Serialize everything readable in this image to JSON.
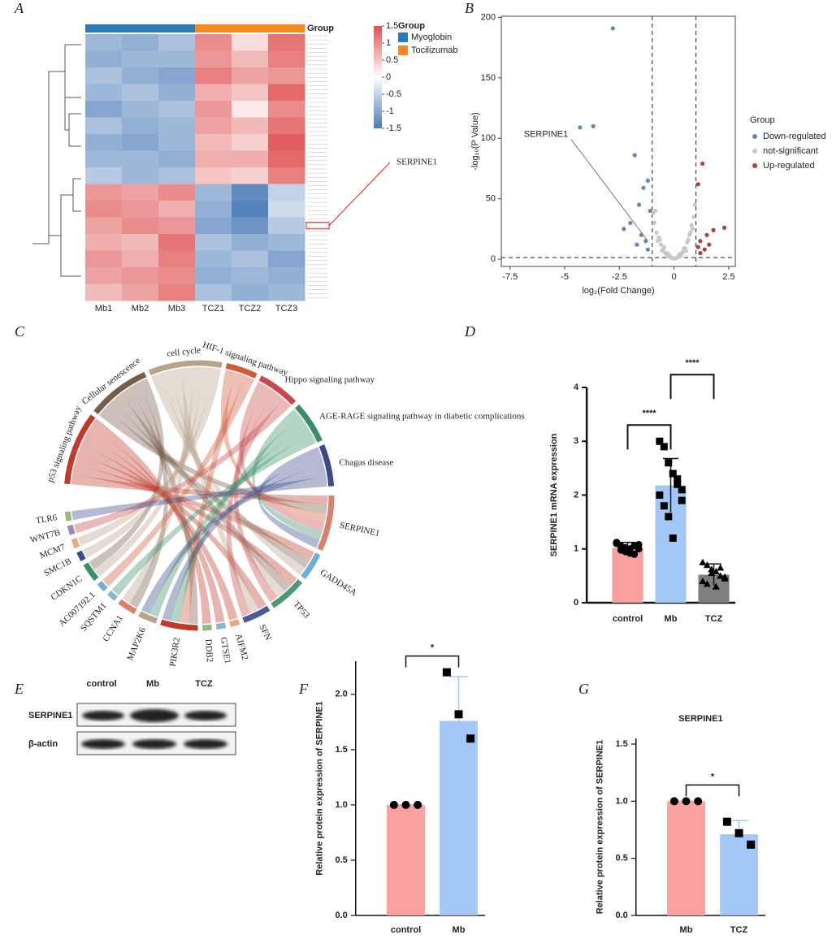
{
  "panels": [
    "A",
    "B",
    "C",
    "D",
    "E",
    "F",
    "G"
  ],
  "chart_data": [
    {
      "type": "heatmap",
      "categories": [
        "Mb1",
        "Mb2",
        "Mb3",
        "TCZ1",
        "TCZ2",
        "TCZ3"
      ],
      "legend_title": "Group",
      "groups": [
        {
          "name": "Myoglobin",
          "color": "#2b7bba",
          "columns": [
            "Mb1",
            "Mb2",
            "Mb3"
          ]
        },
        {
          "name": "Tocilizumab",
          "color": "#f5891f",
          "columns": [
            "TCZ1",
            "TCZ2",
            "TCZ3"
          ]
        }
      ],
      "clim": [
        -1.5,
        1.5
      ],
      "colorticks": [
        1.5,
        1,
        0.5,
        0,
        -0.5,
        -1,
        -1.5
      ],
      "annotation": {
        "text": "SERPINE1",
        "row": 11
      },
      "values": [
        [
          -0.8,
          -0.9,
          -0.7,
          1.0,
          0.3,
          1.2
        ],
        [
          -0.9,
          -0.8,
          -0.8,
          0.9,
          0.6,
          1.1
        ],
        [
          -0.7,
          -0.9,
          -1.0,
          1.1,
          0.8,
          0.9
        ],
        [
          -0.8,
          -0.7,
          -0.9,
          0.7,
          0.5,
          1.3
        ],
        [
          -1.0,
          -0.8,
          -0.7,
          0.9,
          0.2,
          1.0
        ],
        [
          -0.7,
          -0.9,
          -0.8,
          0.8,
          0.6,
          1.2
        ],
        [
          -0.9,
          -1.0,
          -0.8,
          0.6,
          0.4,
          1.4
        ],
        [
          -0.8,
          -0.8,
          -0.9,
          0.7,
          0.7,
          1.3
        ],
        [
          -0.6,
          -0.8,
          -0.7,
          0.5,
          0.4,
          1.1
        ],
        [
          0.9,
          0.8,
          1.0,
          -0.8,
          -1.3,
          -0.5
        ],
        [
          1.0,
          0.9,
          0.7,
          -0.9,
          -1.4,
          -0.4
        ],
        [
          0.8,
          1.0,
          0.9,
          -1.0,
          -1.2,
          -0.6
        ],
        [
          0.7,
          0.6,
          1.2,
          -0.7,
          -0.9,
          -0.8
        ],
        [
          0.9,
          0.7,
          1.1,
          -0.8,
          -0.7,
          -1.0
        ],
        [
          0.8,
          0.9,
          1.0,
          -0.9,
          -0.8,
          -0.9
        ],
        [
          0.6,
          0.8,
          1.1,
          -0.7,
          -0.9,
          -0.8
        ]
      ]
    },
    {
      "type": "scatter",
      "xlabel": "log₂(Fold Change)",
      "ylabel": "-log₁₀(P Value)",
      "xlim": [
        -7.9,
        2.8
      ],
      "ylim": [
        -6,
        201
      ],
      "xticks": [
        -7.5,
        -5,
        -2.5,
        0,
        2.5
      ],
      "yticks": [
        0,
        50,
        100,
        150,
        200
      ],
      "vlines": [
        -1,
        1
      ],
      "hline": 1.3,
      "legend_title": "Group",
      "legend": "right",
      "annotation": {
        "text": "SERPINE1",
        "x": -1.2,
        "y": 15
      },
      "series": [
        {
          "name": "Down-regulated",
          "color": "#6a87a8",
          "x": [
            -2.8,
            -4.3,
            -3.7,
            -1.8,
            -1.4,
            -1.2,
            -1.6,
            -2.0,
            -2.3,
            -1.5,
            -1.3,
            -1.2,
            -1.1,
            -1.7
          ],
          "values": [
            191,
            109,
            110,
            86,
            59,
            65,
            45,
            30,
            25,
            20,
            15,
            8,
            40,
            12
          ]
        },
        {
          "name": "not-significant",
          "color": "#c8c8c8",
          "x": [
            -0.9,
            -0.8,
            -0.7,
            -0.6,
            -0.5,
            -0.4,
            -0.3,
            -0.2,
            -0.1,
            0,
            0.1,
            0.2,
            0.3,
            0.4,
            0.5,
            0.6,
            0.7,
            0.8,
            0.9,
            -0.85,
            -0.65,
            -0.45,
            -0.25,
            0.25,
            0.45,
            0.65,
            0.85,
            -0.55,
            0.55,
            0.15,
            -0.15,
            0.35,
            -0.35,
            0.75,
            -0.75,
            0.95,
            -0.95,
            0.05
          ],
          "values": [
            30,
            22,
            18,
            12,
            8,
            5,
            3,
            2,
            1,
            0.5,
            1,
            2,
            3,
            6,
            9,
            14,
            20,
            28,
            35,
            40,
            16,
            10,
            4,
            4,
            9,
            16,
            25,
            7,
            7,
            1.5,
            1.5,
            5,
            5,
            22,
            15,
            45,
            38,
            0.8
          ]
        },
        {
          "name": "Up-regulated",
          "color": "#b83c3c",
          "x": [
            1.3,
            1.1,
            2.3,
            1.5,
            1.2,
            1.1,
            1.8,
            1.4,
            1.2,
            1.6
          ],
          "values": [
            79,
            62,
            26,
            20,
            15,
            10,
            24,
            8,
            5,
            12
          ]
        }
      ]
    },
    {
      "type": "bar",
      "ylabel": "SERPINE1 mRNA expression",
      "categories": [
        "control",
        "Mb",
        "TCZ"
      ],
      "values": [
        1.02,
        2.18,
        0.52
      ],
      "errors": [
        0.1,
        0.5,
        0.2
      ],
      "colors": [
        "#f9a0a0",
        "#a3c8f7",
        "#7f7f7f"
      ],
      "markers": [
        "circle",
        "square",
        "triangle"
      ],
      "points": [
        [
          1.1,
          1.05,
          0.95,
          1.0,
          0.9,
          1.08,
          1.12,
          0.98,
          1.02,
          0.92,
          1.06,
          1.0
        ],
        [
          3.0,
          2.9,
          2.6,
          2.4,
          2.2,
          2.1,
          2.0,
          1.8,
          1.6,
          1.2,
          2.3,
          1.9
        ],
        [
          0.75,
          0.7,
          0.62,
          0.58,
          0.5,
          0.45,
          0.4,
          0.35,
          0.55,
          0.3,
          0.65,
          0.48
        ]
      ],
      "ylim": [
        0,
        4
      ],
      "yticks": [
        0,
        1,
        2,
        3,
        4
      ],
      "significance": [
        {
          "label": "****",
          "groups": [
            "control",
            "Mb"
          ]
        },
        {
          "label": "****",
          "groups": [
            "Mb",
            "TCZ"
          ]
        }
      ]
    },
    {
      "type": "bar",
      "ylabel": "Relative protein expression of SERPINE1",
      "categories": [
        "control",
        "Mb"
      ],
      "values": [
        1.0,
        1.76
      ],
      "errors": [
        0,
        0.4
      ],
      "colors": [
        "#f9a0a0",
        "#a3c8f7"
      ],
      "markers": [
        "circle",
        "square"
      ],
      "points": [
        [
          1.0,
          1.0,
          1.0
        ],
        [
          2.2,
          1.82,
          1.6
        ]
      ],
      "ylim": [
        0,
        2.3
      ],
      "yticks": [
        {
          "value": 0,
          "label": "0.0"
        },
        0.5,
        {
          "value": 1,
          "label": "1.0"
        },
        1.5,
        {
          "value": 2,
          "label": "2.0"
        }
      ],
      "significance": [
        {
          "label": "*",
          "groups": [
            "control",
            "Mb"
          ]
        }
      ]
    },
    {
      "type": "bar",
      "title": "SERPINE1",
      "ylabel": "Relative protein expression of SERPINE1",
      "categories": [
        "Mb",
        "TCZ"
      ],
      "values": [
        1.0,
        0.71
      ],
      "errors": [
        0,
        0.12
      ],
      "colors": [
        "#f9a0a0",
        "#a3c8f7"
      ],
      "markers": [
        "circle",
        "square"
      ],
      "points": [
        [
          1.0,
          1.0,
          1.0
        ],
        [
          0.82,
          0.72,
          0.62
        ]
      ],
      "ylim": [
        0,
        1.55
      ],
      "yticks": [
        {
          "value": 0,
          "label": "0.0"
        },
        0.5,
        {
          "value": 1,
          "label": "1.0"
        },
        1.5
      ],
      "significance": [
        {
          "label": "*",
          "groups": [
            "Mb",
            "TCZ"
          ]
        }
      ]
    }
  ],
  "chord": {
    "pathways": [
      {
        "name": "p53 signaling pathway",
        "color": "#c0392b"
      },
      {
        "name": "Cellular senescence",
        "color": "#7a5c4a"
      },
      {
        "name": "cell cycle",
        "color": "#b8a48a"
      },
      {
        "name": "HIF-1 signaling pathway",
        "color": "#d35a3a"
      },
      {
        "name": "Hippo signaling pathway",
        "color": "#c94a4a"
      },
      {
        "name": "AGE-RAGE signaling pathway in diabetic complications",
        "color": "#3a8f6a"
      },
      {
        "name": "Chagas disease",
        "color": "#3b4a8a"
      }
    ],
    "genes": [
      {
        "name": "SERPINE1",
        "color": "#d9816b"
      },
      {
        "name": "GADD45A",
        "color": "#6ab0d8"
      },
      {
        "name": "TP53",
        "color": "#4a9a7a"
      },
      {
        "name": "SFN",
        "color": "#4a5a9a"
      },
      {
        "name": "AIFM2",
        "color": "#e8a87c"
      },
      {
        "name": "GTSE1",
        "color": "#8ab8c8"
      },
      {
        "name": "DDB2",
        "color": "#9ab87a"
      },
      {
        "name": "PIK3R2",
        "color": "#c0392b"
      },
      {
        "name": "MAP2K6",
        "color": "#b8a48a"
      },
      {
        "name": "CCNA1",
        "color": "#d9816b"
      },
      {
        "name": "SQSTM1",
        "color": "#8ab8c8"
      },
      {
        "name": "AC007192.1",
        "color": "#6ab0d8"
      },
      {
        "name": "CDKN1C",
        "color": "#3a8f6a"
      },
      {
        "name": "SMC1B",
        "color": "#3b4a8a"
      },
      {
        "name": "MCM7",
        "color": "#e8a87c"
      },
      {
        "name": "WNT7B",
        "color": "#9a8ab8"
      },
      {
        "name": "TLR6",
        "color": "#9ab87a"
      }
    ],
    "links": [
      [
        0,
        0
      ],
      [
        0,
        1
      ],
      [
        0,
        3
      ],
      [
        0,
        4
      ],
      [
        0,
        5
      ],
      [
        0,
        6
      ],
      [
        1,
        0
      ],
      [
        1,
        1
      ],
      [
        1,
        2
      ],
      [
        2,
        0
      ],
      [
        2,
        1
      ],
      [
        2,
        2
      ],
      [
        2,
        4
      ],
      [
        3,
        0
      ],
      [
        3,
        2
      ],
      [
        3,
        4
      ],
      [
        4,
        0
      ],
      [
        5,
        0
      ],
      [
        6,
        0
      ],
      [
        7,
        1
      ],
      [
        7,
        3
      ],
      [
        7,
        5
      ],
      [
        7,
        6
      ],
      [
        8,
        5
      ],
      [
        8,
        6
      ],
      [
        9,
        1
      ],
      [
        9,
        2
      ],
      [
        10,
        5
      ],
      [
        11,
        3
      ],
      [
        12,
        2
      ],
      [
        12,
        1
      ],
      [
        13,
        2
      ],
      [
        14,
        2
      ],
      [
        15,
        4
      ],
      [
        16,
        6
      ]
    ]
  },
  "blot": {
    "lanes": [
      "control",
      "Mb",
      "TCZ"
    ],
    "proteins": [
      "SERPINE1",
      "β-actin"
    ]
  }
}
